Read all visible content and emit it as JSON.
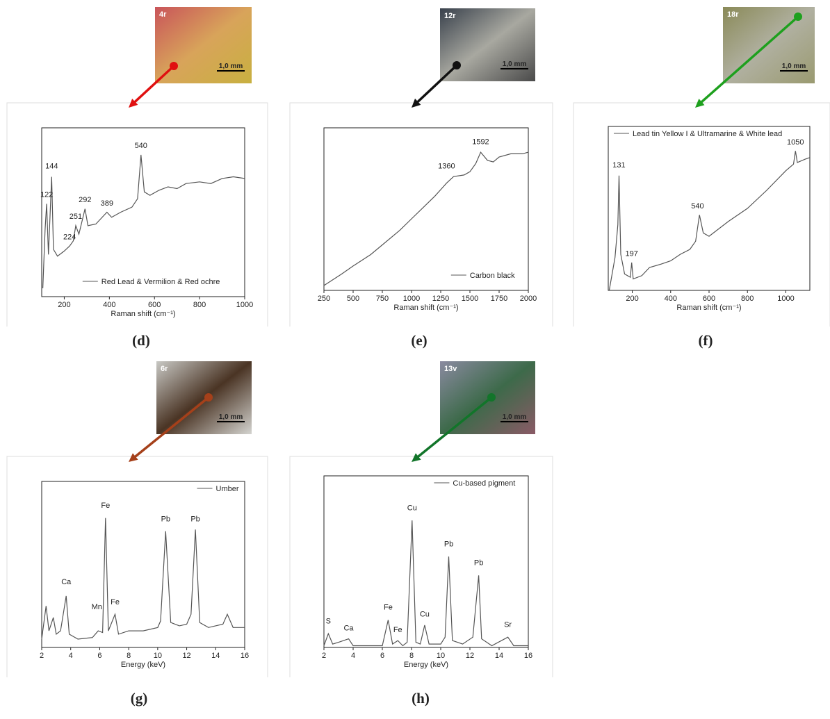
{
  "chart_data": [
    {
      "type": "line",
      "panel": "(d)",
      "sample": "4r",
      "scale_bar": "1,0 mm",
      "arrow_color": "#e01010",
      "x_label": "Raman shift (cm⁻¹)",
      "legend": "lower right",
      "color": "#555555",
      "xlim": [
        100,
        1000
      ],
      "xticks": [
        200,
        400,
        600,
        800,
        1000
      ],
      "ylim": [
        0,
        100
      ],
      "series": [
        {
          "name": "Red Lead & Vermilion & Red ochre",
          "x": [
            105,
            115,
            122,
            130,
            144,
            152,
            170,
            200,
            224,
            240,
            251,
            265,
            292,
            305,
            340,
            389,
            410,
            450,
            500,
            525,
            540,
            555,
            580,
            620,
            660,
            700,
            740,
            800,
            850,
            900,
            950,
            1000
          ],
          "values": [
            5,
            40,
            55,
            25,
            71,
            28,
            24,
            27,
            30,
            33,
            42,
            37,
            52,
            42,
            43,
            50,
            47,
            50,
            53,
            58,
            84,
            62,
            60,
            63,
            65,
            64,
            67,
            68,
            67,
            70,
            71,
            70
          ]
        }
      ],
      "annotations": [
        {
          "text": "122",
          "x": 122,
          "y": 59
        },
        {
          "text": "144",
          "x": 144,
          "y": 76
        },
        {
          "text": "224",
          "x": 224,
          "y": 34
        },
        {
          "text": "251",
          "x": 251,
          "y": 46
        },
        {
          "text": "292",
          "x": 292,
          "y": 56
        },
        {
          "text": "389",
          "x": 389,
          "y": 54
        },
        {
          "text": "540",
          "x": 540,
          "y": 88
        }
      ]
    },
    {
      "type": "line",
      "panel": "(e)",
      "sample": "12r",
      "scale_bar": "1,0 mm",
      "arrow_color": "#111111",
      "x_label": "Raman shift (cm⁻¹)",
      "legend": "lower right",
      "color": "#555555",
      "xlim": [
        250,
        2000
      ],
      "xticks": [
        250,
        500,
        750,
        1000,
        1250,
        1500,
        1750,
        2000
      ],
      "ylim": [
        0,
        100
      ],
      "series": [
        {
          "name": "Carbon black",
          "x": [
            250,
            400,
            500,
            650,
            750,
            900,
            1000,
            1100,
            1200,
            1300,
            1360,
            1450,
            1500,
            1550,
            1592,
            1650,
            1700,
            1750,
            1850,
            1950,
            2000
          ],
          "values": [
            3,
            10,
            15,
            22,
            28,
            37,
            44,
            51,
            58,
            66,
            70,
            71,
            73,
            78,
            85,
            80,
            79,
            82,
            84,
            84,
            85
          ]
        }
      ],
      "annotations": [
        {
          "text": "1360",
          "x": 1300,
          "y": 75
        },
        {
          "text": "1592",
          "x": 1592,
          "y": 90
        }
      ]
    },
    {
      "type": "line",
      "panel": "(f)",
      "sample": "18r",
      "scale_bar": "1,0 mm",
      "arrow_color": "#1ea01e",
      "x_label": "Raman shift (cm⁻¹)",
      "legend": "upper left",
      "color": "#555555",
      "xlim": [
        75,
        1125
      ],
      "xticks": [
        200,
        400,
        600,
        800,
        1000
      ],
      "ylim": [
        0,
        100
      ],
      "series": [
        {
          "name": "Lead tin Yellow I & Ultramarine & White lead",
          "x": [
            80,
            110,
            125,
            131,
            140,
            160,
            190,
            197,
            205,
            250,
            290,
            350,
            400,
            450,
            500,
            530,
            550,
            570,
            600,
            700,
            800,
            900,
            1000,
            1040,
            1050,
            1060,
            1100,
            1125
          ],
          "values": [
            0,
            20,
            40,
            70,
            22,
            10,
            8,
            17,
            7,
            9,
            14,
            16,
            18,
            22,
            25,
            30,
            46,
            35,
            33,
            42,
            50,
            61,
            73,
            77,
            85,
            78,
            80,
            81
          ]
        }
      ],
      "annotations": [
        {
          "text": "131",
          "x": 131,
          "y": 75
        },
        {
          "text": "197",
          "x": 197,
          "y": 21
        },
        {
          "text": "540",
          "x": 540,
          "y": 50
        },
        {
          "text": "1050",
          "x": 1050,
          "y": 89
        }
      ]
    },
    {
      "type": "line",
      "panel": "(g)",
      "sample": "6r",
      "scale_bar": "1,0 mm",
      "arrow_color": "#a5401a",
      "x_label": "Energy (keV)",
      "legend": "upper right",
      "color": "#555555",
      "xlim": [
        2,
        16
      ],
      "xticks": [
        2,
        4,
        6,
        8,
        10,
        12,
        14,
        16
      ],
      "ylim": [
        0,
        100
      ],
      "series": [
        {
          "name": "Umber",
          "x": [
            2,
            2.3,
            2.5,
            2.8,
            3,
            3.3,
            3.69,
            3.9,
            4.5,
            5.5,
            5.9,
            6.2,
            6.4,
            6.6,
            7.06,
            7.3,
            8,
            9,
            10,
            10.2,
            10.55,
            10.9,
            11.5,
            12,
            12.3,
            12.6,
            12.9,
            13.5,
            14.5,
            14.8,
            15.2,
            16
          ],
          "values": [
            5,
            25,
            10,
            18,
            8,
            10,
            31,
            8,
            5,
            6,
            10,
            9,
            78,
            10,
            20,
            8,
            10,
            10,
            12,
            16,
            70,
            15,
            13,
            14,
            20,
            71,
            15,
            12,
            14,
            20,
            12,
            12
          ]
        }
      ],
      "annotations": [
        {
          "text": "Ca",
          "x": 3.69,
          "y": 38
        },
        {
          "text": "Mn",
          "x": 5.8,
          "y": 23
        },
        {
          "text": "Fe",
          "x": 6.4,
          "y": 84
        },
        {
          "text": "Fe",
          "x": 7.06,
          "y": 26
        },
        {
          "text": "Pb",
          "x": 10.55,
          "y": 76
        },
        {
          "text": "Pb",
          "x": 12.6,
          "y": 76
        }
      ]
    },
    {
      "type": "line",
      "panel": "(h)",
      "sample": "13v",
      "scale_bar": "1,0 mm",
      "arrow_color": "#12752a",
      "x_label": "Energy (keV)",
      "legend": "upper right",
      "color": "#555555",
      "xlim": [
        2,
        16
      ],
      "xticks": [
        2,
        4,
        6,
        8,
        10,
        12,
        14,
        16
      ],
      "ylim": [
        0,
        100
      ],
      "series": [
        {
          "name": "Cu-based pigment",
          "x": [
            2,
            2.3,
            2.6,
            3,
            3.69,
            4,
            5,
            6,
            6.4,
            6.7,
            7.06,
            7.4,
            7.7,
            8.04,
            8.3,
            8.6,
            8.9,
            9.2,
            10,
            10.3,
            10.55,
            10.8,
            11.5,
            12.2,
            12.6,
            12.8,
            13.5,
            14.6,
            15,
            16
          ],
          "values": [
            1,
            8,
            2,
            3,
            5,
            1,
            1,
            1,
            16,
            2,
            4,
            1,
            3,
            74,
            3,
            2,
            13,
            2,
            2,
            6,
            53,
            4,
            2,
            6,
            42,
            5,
            1,
            6,
            1,
            1
          ]
        }
      ],
      "annotations": [
        {
          "text": "S",
          "x": 2.3,
          "y": 14
        },
        {
          "text": "Ca",
          "x": 3.69,
          "y": 10
        },
        {
          "text": "Fe",
          "x": 6.4,
          "y": 22
        },
        {
          "text": "Fe",
          "x": 7.06,
          "y": 9
        },
        {
          "text": "Cu",
          "x": 8.04,
          "y": 80
        },
        {
          "text": "Cu",
          "x": 8.9,
          "y": 18
        },
        {
          "text": "Pb",
          "x": 10.55,
          "y": 59
        },
        {
          "text": "Pb",
          "x": 12.6,
          "y": 48
        },
        {
          "text": "Sr",
          "x": 14.6,
          "y": 12
        }
      ]
    }
  ]
}
